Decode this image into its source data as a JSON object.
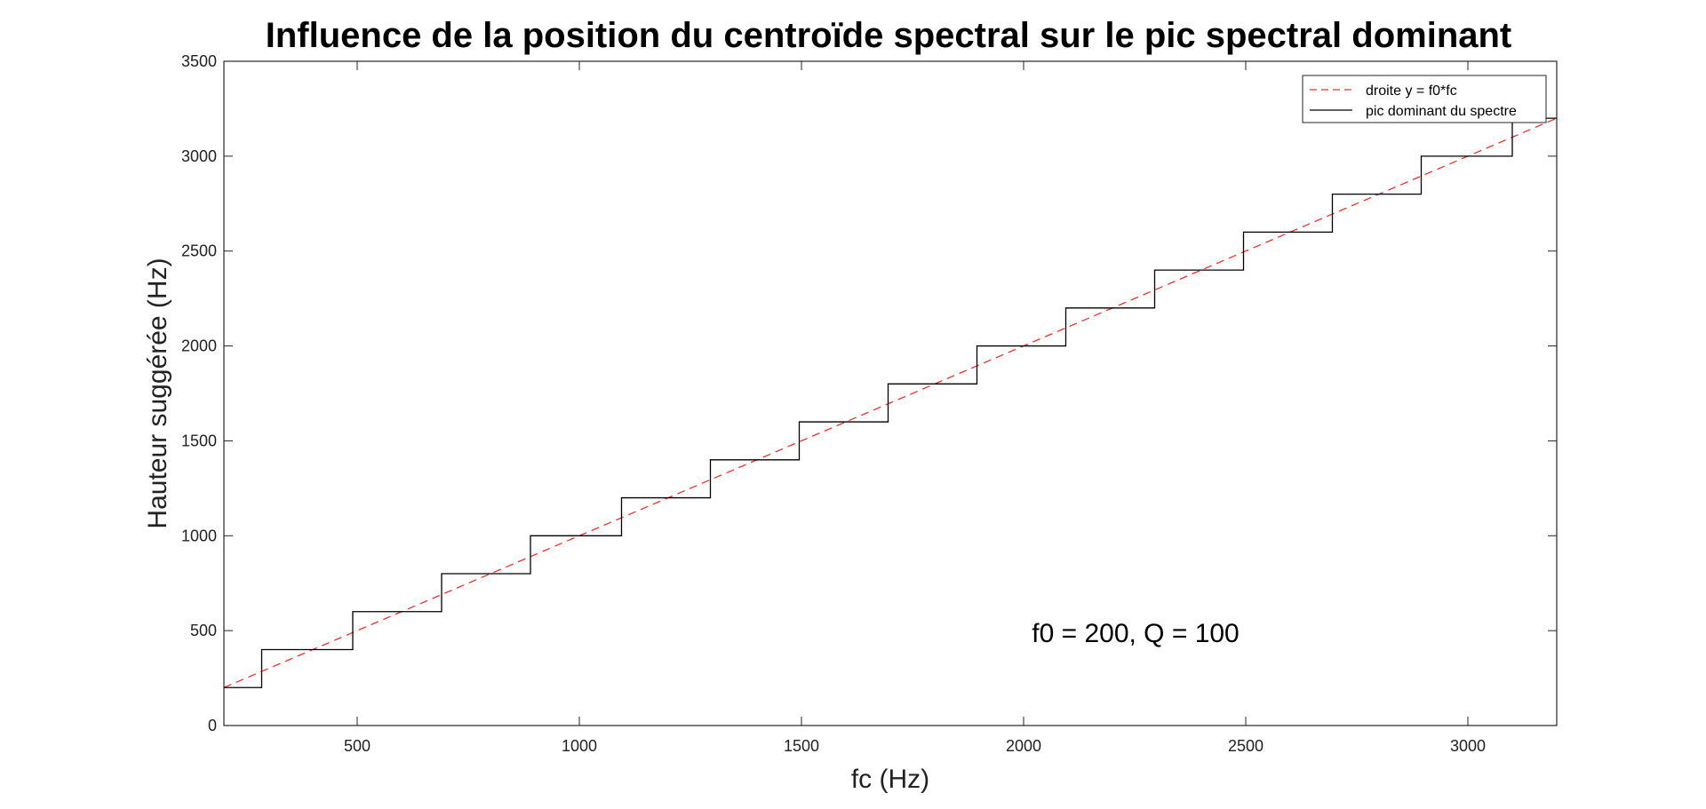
{
  "chart_data": {
    "type": "line",
    "title": "Influence de la position du centroïde spectral sur le pic spectral dominant",
    "xlabel": "fc (Hz)",
    "ylabel": "Hauteur suggérée (Hz)",
    "xlim": [
      200,
      3200
    ],
    "ylim": [
      0,
      3500
    ],
    "xticks": [
      500,
      1000,
      1500,
      2000,
      2500,
      3000
    ],
    "yticks": [
      0,
      500,
      1000,
      1500,
      2000,
      2500,
      3000,
      3500
    ],
    "grid": false,
    "legend_position": "top-right",
    "annotation": "f0 = 200, Q = 100",
    "series": [
      {
        "name": "droite y = f0*fc",
        "color": "#e8332a",
        "style": "dashed",
        "x": [
          200,
          3200
        ],
        "y": [
          200,
          3200
        ]
      },
      {
        "name": "pic dominant du spectre",
        "color": "#000000",
        "style": "solid-step",
        "x": [
          200,
          285,
          285,
          490,
          490,
          690,
          690,
          890,
          890,
          1095,
          1095,
          1295,
          1295,
          1495,
          1495,
          1695,
          1695,
          1895,
          1895,
          2095,
          2095,
          2295,
          2295,
          2495,
          2495,
          2695,
          2695,
          2895,
          2895,
          3100,
          3100,
          3200
        ],
        "y": [
          200,
          200,
          400,
          400,
          600,
          600,
          800,
          800,
          1000,
          1000,
          1200,
          1200,
          1400,
          1400,
          1600,
          1600,
          1800,
          1800,
          2000,
          2000,
          2200,
          2200,
          2400,
          2400,
          2600,
          2600,
          2800,
          2800,
          3000,
          3000,
          3200,
          3200
        ]
      }
    ]
  }
}
